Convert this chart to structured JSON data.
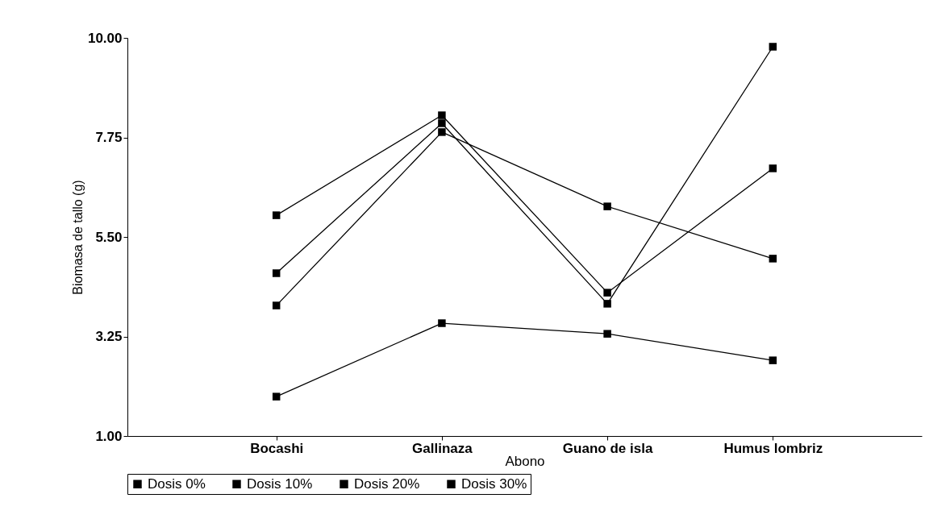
{
  "chart_data": {
    "type": "line",
    "xlabel": "Abono",
    "ylabel": "Biomasa de tallo (g)",
    "categories": [
      "Bocashi",
      "Gallinaza",
      "Guano de isla",
      "Humus lombriz"
    ],
    "series": [
      {
        "name": "Dosis 0%",
        "color": "#000000",
        "values": [
          1.89,
          3.55,
          3.31,
          2.71
        ]
      },
      {
        "name": "Dosis 10%",
        "color": "#000000",
        "values": [
          3.95,
          7.87,
          6.19,
          5.01
        ]
      },
      {
        "name": "Dosis 20%",
        "color": "#000000",
        "values": [
          5.99,
          8.25,
          4.24,
          7.05
        ]
      },
      {
        "name": "Dosis 30%",
        "color": "#000000",
        "values": [
          4.68,
          8.07,
          3.99,
          9.8
        ]
      }
    ],
    "ylim": [
      1,
      10
    ],
    "yticks": [
      {
        "value": 1,
        "label": "1.00"
      },
      {
        "value": 3.25,
        "label": "3.25"
      },
      {
        "value": 5.5,
        "label": "5.50"
      },
      {
        "value": 7.75,
        "label": "7.75"
      },
      {
        "value": 10,
        "label": "10.00"
      }
    ],
    "grid": false,
    "legend": "bottom",
    "marker": "square",
    "line_style": "solid"
  }
}
